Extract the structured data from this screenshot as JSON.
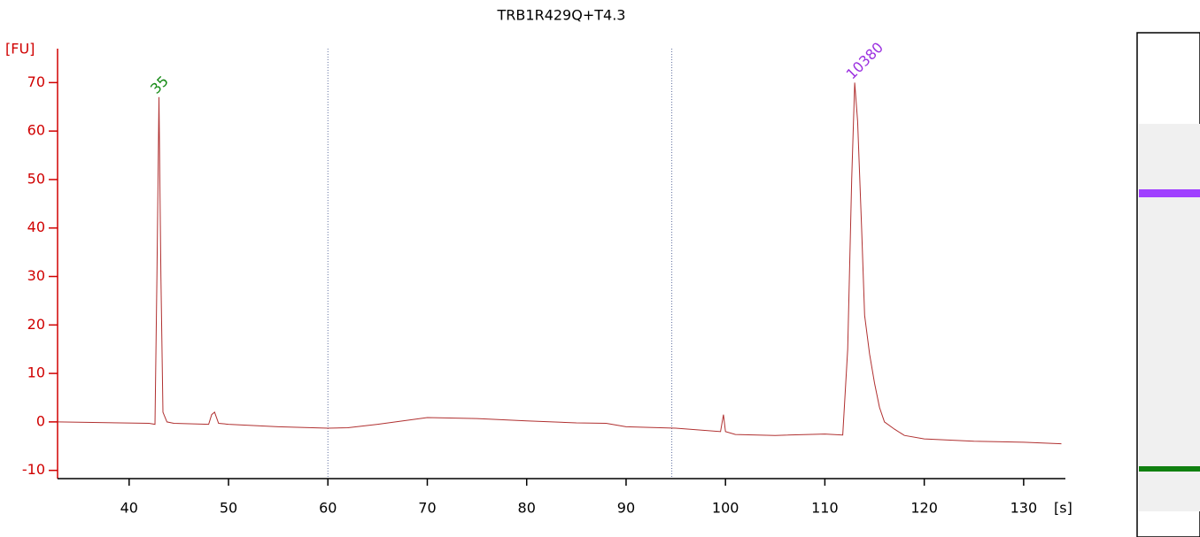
{
  "chart_data": {
    "type": "line",
    "title": "TRB1R429Q+T4.3",
    "y_label": "[FU]",
    "x_label": "[s]",
    "x": [
      32.8,
      42,
      42.6,
      42.8,
      43.0,
      43.2,
      43.4,
      43.8,
      44.5,
      48,
      48.3,
      48.6,
      49,
      50,
      55,
      60,
      62,
      65,
      70,
      75,
      80,
      85,
      88,
      90,
      95,
      99.5,
      99.8,
      100,
      101,
      105,
      110,
      111.8,
      112.3,
      112.7,
      113.0,
      113.3,
      113.7,
      114.0,
      114.5,
      115,
      115.5,
      116,
      117,
      118,
      120,
      125,
      130,
      133.8
    ],
    "values": [
      0,
      -0.3,
      -0.5,
      30,
      67,
      30,
      2,
      0,
      -0.3,
      -0.5,
      1.5,
      2,
      -0.3,
      -0.5,
      -1,
      -1.3,
      -1.2,
      -0.5,
      0.9,
      0.7,
      0.2,
      -0.2,
      -0.3,
      -1,
      -1.3,
      -2,
      1.5,
      -2,
      -2.6,
      -2.8,
      -2.5,
      -2.7,
      15,
      50,
      70,
      62,
      40,
      22,
      14,
      8,
      3,
      0,
      -1.5,
      -2.8,
      -3.5,
      -4,
      -4.2,
      -4.5
    ],
    "color": "#b03030",
    "xlim": [
      32.8,
      134.2
    ],
    "ylim": [
      -11.7,
      77
    ],
    "xticks": [
      40,
      50,
      60,
      70,
      80,
      90,
      100,
      110,
      120,
      130
    ],
    "yticks": [
      -10,
      0,
      10,
      20,
      30,
      40,
      50,
      60,
      70
    ],
    "vlines": [
      60,
      94.6
    ],
    "annotations": [
      {
        "x": 43,
        "y": 67,
        "text": "35",
        "color": "#138a13"
      },
      {
        "x": 113,
        "y": 70,
        "text": "10380",
        "color": "#9b30e0"
      }
    ]
  }
}
